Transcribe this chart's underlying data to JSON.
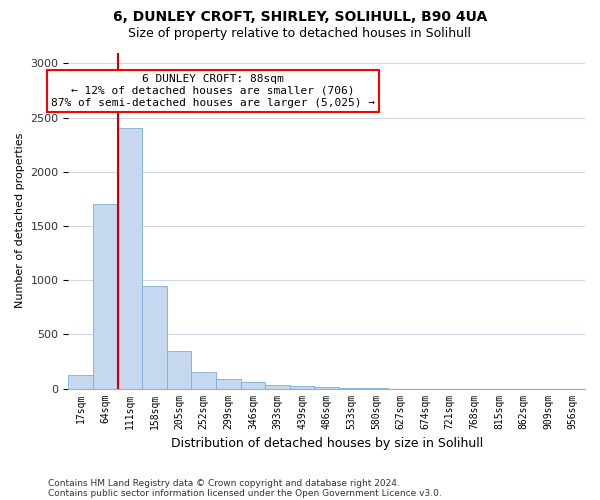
{
  "title1": "6, DUNLEY CROFT, SHIRLEY, SOLIHULL, B90 4UA",
  "title2": "Size of property relative to detached houses in Solihull",
  "xlabel": "Distribution of detached houses by size in Solihull",
  "ylabel": "Number of detached properties",
  "footnote1": "Contains HM Land Registry data © Crown copyright and database right 2024.",
  "footnote2": "Contains public sector information licensed under the Open Government Licence v3.0.",
  "bin_labels": [
    "17sqm",
    "64sqm",
    "111sqm",
    "158sqm",
    "205sqm",
    "252sqm",
    "299sqm",
    "346sqm",
    "393sqm",
    "439sqm",
    "486sqm",
    "533sqm",
    "580sqm",
    "627sqm",
    "674sqm",
    "721sqm",
    "768sqm",
    "815sqm",
    "862sqm",
    "909sqm",
    "956sqm"
  ],
  "bar_values": [
    125,
    1700,
    2400,
    950,
    350,
    150,
    90,
    60,
    35,
    20,
    12,
    8,
    4,
    0,
    0,
    0,
    0,
    0,
    0,
    0,
    0
  ],
  "bar_color": "#c5d8f0",
  "bar_edgecolor": "#7bafd4",
  "grid_color": "#d0d8e8",
  "property_label": "6 DUNLEY CROFT: 88sqm",
  "annotation_line1": "← 12% of detached houses are smaller (706)",
  "annotation_line2": "87% of semi-detached houses are larger (5,025) →",
  "vline_color": "#cc0000",
  "ylim": [
    0,
    3100
  ],
  "yticks": [
    0,
    500,
    1000,
    1500,
    2000,
    2500,
    3000
  ],
  "figsize": [
    6.0,
    5.0
  ],
  "dpi": 100
}
